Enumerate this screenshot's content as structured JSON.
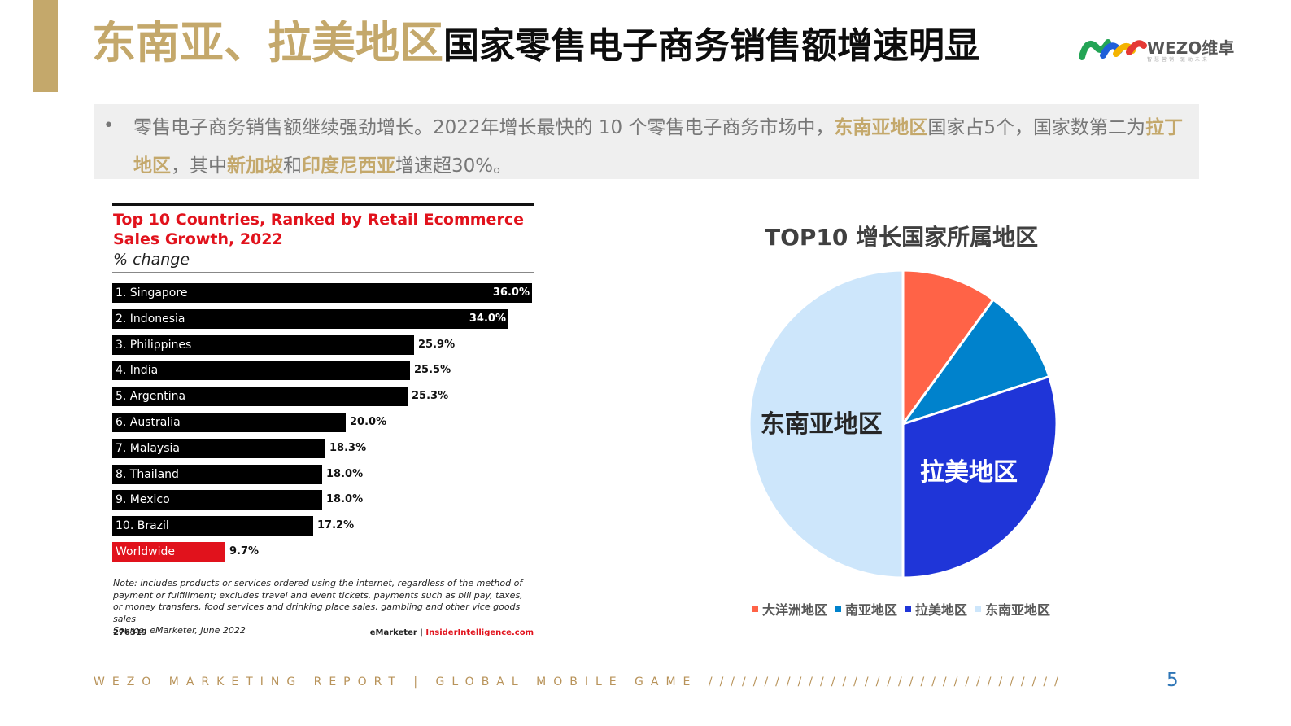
{
  "slide": {
    "title_gold": "东南亚、拉美地区",
    "title_dark": "国家零售电子商务销售额增速明显",
    "logo_text": "WEZO维卓",
    "logo_sub": "智慧营销 驱动未来",
    "summary": {
      "bullet": "•",
      "p1": "零售电子商务销售额继续强劲增长。2022年增长最快的 10 个零售电子商务市场中，",
      "hl1": "东南亚地区",
      "p2": "国家占5个，国家数第二为",
      "hl2": "拉丁地区",
      "p3": "，其中",
      "hl3": "新加坡",
      "p4": "和",
      "hl4": "印度尼西亚",
      "p5": "增速超30%。"
    },
    "footer": "WEZO MARKETING REPORT | GLOBAL MOBILE GAME ////////////////////////////////",
    "page_number": "5",
    "colors": {
      "gold": "#c4a86b",
      "red": "#e1121c",
      "page_blue": "#2e75b6"
    }
  },
  "chart_data": [
    {
      "type": "bar",
      "title": "Top 10 Countries, Ranked by Retail Ecommerce Sales Growth, 2022",
      "subtitle": "% change",
      "categories": [
        "1. Singapore",
        "2. Indonesia",
        "3. Philippines",
        "4. India",
        "5. Argentina",
        "6. Australia",
        "7. Malaysia",
        "8. Thailand",
        "9. Mexico",
        "10. Brazil",
        "Worldwide"
      ],
      "values": [
        36.0,
        34.0,
        25.9,
        25.5,
        25.3,
        20.0,
        18.3,
        18.0,
        18.0,
        17.2,
        9.7
      ],
      "value_labels": [
        "36.0%",
        "34.0%",
        "25.9%",
        "25.5%",
        "25.3%",
        "20.0%",
        "18.3%",
        "18.0%",
        "18.0%",
        "17.2%",
        "9.7%"
      ],
      "bar_colors": [
        "#000000",
        "#000000",
        "#000000",
        "#000000",
        "#000000",
        "#000000",
        "#000000",
        "#000000",
        "#000000",
        "#000000",
        "#e1121c"
      ],
      "xlim": [
        0,
        36.0
      ],
      "note": "Note: includes products or services ordered using the internet, regardless of the method of payment or fulfillment; excludes travel and event tickets, payments such as bill pay, taxes, or money transfers, food services and drinking place sales, gambling and other vice goods sales",
      "source": "Source: eMarketer, June 2022",
      "code": "276319",
      "brand_left": "eMarketer",
      "brand_sep": " | ",
      "brand_right": "InsiderIntelligence.com"
    },
    {
      "type": "pie",
      "title": "TOP10 增长国家所属地区",
      "labels": [
        "大洋洲地区",
        "南亚地区",
        "拉美地区",
        "东南亚地区"
      ],
      "values": [
        1,
        1,
        3,
        5
      ],
      "colors": [
        "#ff6347",
        "#0082cc",
        "#1f35d8",
        "#cde6fb"
      ],
      "slice_labels": {
        "拉美地区": "拉美地区",
        "东南亚地区": "东南亚地区"
      },
      "legend_position": "bottom"
    }
  ]
}
